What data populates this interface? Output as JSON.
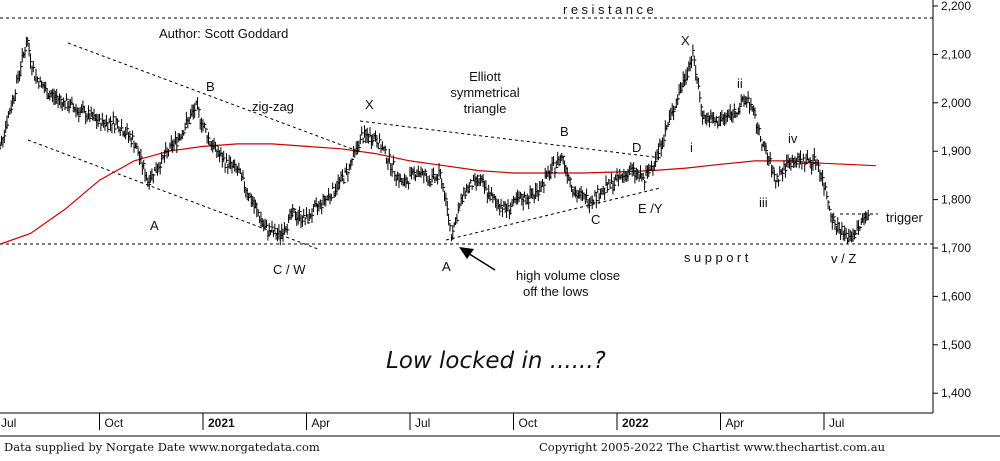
{
  "chart_data": {
    "type": "bar",
    "subtype": "ohlc-price-chart",
    "y_range": [
      1400,
      2200
    ],
    "y_ticks": [
      "1,400",
      "1,500",
      "1,600",
      "1,700",
      "1,800",
      "1,900",
      "2,000",
      "2,100",
      "2,200"
    ],
    "x_labels": [
      "Jul",
      "Oct",
      "2021",
      "Apr",
      "Jul",
      "Oct",
      "2022",
      "Apr",
      "Jul"
    ],
    "x_label_months": [
      0,
      3,
      6,
      9,
      12,
      15,
      18,
      21,
      24
    ],
    "price_path": [
      {
        "m": 0.0,
        "v": 1880
      },
      {
        "m": 0.5,
        "v": 2010
      },
      {
        "m": 0.9,
        "v": 2130
      },
      {
        "m": 1.1,
        "v": 2060
      },
      {
        "m": 1.5,
        "v": 2020
      },
      {
        "m": 2.0,
        "v": 2000
      },
      {
        "m": 2.5,
        "v": 1980
      },
      {
        "m": 3.0,
        "v": 1960
      },
      {
        "m": 3.5,
        "v": 1960
      },
      {
        "m": 4.0,
        "v": 1920
      },
      {
        "m": 4.4,
        "v": 1840
      },
      {
        "m": 4.8,
        "v": 1880
      },
      {
        "m": 5.3,
        "v": 1930
      },
      {
        "m": 5.8,
        "v": 1990
      },
      {
        "m": 6.2,
        "v": 1920
      },
      {
        "m": 6.6,
        "v": 1880
      },
      {
        "m": 7.0,
        "v": 1860
      },
      {
        "m": 7.4,
        "v": 1800
      },
      {
        "m": 7.8,
        "v": 1740
      },
      {
        "m": 8.2,
        "v": 1725
      },
      {
        "m": 8.6,
        "v": 1770
      },
      {
        "m": 9.0,
        "v": 1760
      },
      {
        "m": 9.4,
        "v": 1790
      },
      {
        "m": 9.8,
        "v": 1820
      },
      {
        "m": 10.2,
        "v": 1860
      },
      {
        "m": 10.6,
        "v": 1930
      },
      {
        "m": 11.0,
        "v": 1930
      },
      {
        "m": 11.4,
        "v": 1880
      },
      {
        "m": 11.8,
        "v": 1830
      },
      {
        "m": 12.2,
        "v": 1860
      },
      {
        "m": 12.6,
        "v": 1840
      },
      {
        "m": 12.9,
        "v": 1850
      },
      {
        "m": 13.2,
        "v": 1730
      },
      {
        "m": 13.6,
        "v": 1820
      },
      {
        "m": 14.0,
        "v": 1840
      },
      {
        "m": 14.4,
        "v": 1800
      },
      {
        "m": 14.8,
        "v": 1780
      },
      {
        "m": 15.2,
        "v": 1800
      },
      {
        "m": 15.6,
        "v": 1810
      },
      {
        "m": 16.0,
        "v": 1850
      },
      {
        "m": 16.4,
        "v": 1890
      },
      {
        "m": 16.8,
        "v": 1810
      },
      {
        "m": 17.2,
        "v": 1800
      },
      {
        "m": 17.6,
        "v": 1820
      },
      {
        "m": 18.0,
        "v": 1840
      },
      {
        "m": 18.4,
        "v": 1860
      },
      {
        "m": 18.8,
        "v": 1840
      },
      {
        "m": 19.2,
        "v": 1900
      },
      {
        "m": 19.6,
        "v": 1980
      },
      {
        "m": 20.0,
        "v": 2060
      },
      {
        "m": 20.2,
        "v": 2100
      },
      {
        "m": 20.5,
        "v": 1970
      },
      {
        "m": 20.9,
        "v": 1960
      },
      {
        "m": 21.4,
        "v": 1980
      },
      {
        "m": 21.8,
        "v": 2010
      },
      {
        "m": 22.2,
        "v": 1920
      },
      {
        "m": 22.6,
        "v": 1840
      },
      {
        "m": 23.0,
        "v": 1880
      },
      {
        "m": 23.4,
        "v": 1880
      },
      {
        "m": 23.8,
        "v": 1880
      },
      {
        "m": 24.0,
        "v": 1830
      },
      {
        "m": 24.3,
        "v": 1750
      },
      {
        "m": 24.7,
        "v": 1720
      },
      {
        "m": 25.0,
        "v": 1740
      },
      {
        "m": 25.3,
        "v": 1780
      }
    ],
    "moving_average": [
      {
        "m": 0.0,
        "v": 1705
      },
      {
        "m": 1.0,
        "v": 1730
      },
      {
        "m": 2.0,
        "v": 1780
      },
      {
        "m": 3.0,
        "v": 1840
      },
      {
        "m": 4.0,
        "v": 1880
      },
      {
        "m": 5.0,
        "v": 1900
      },
      {
        "m": 6.0,
        "v": 1910
      },
      {
        "m": 7.0,
        "v": 1915
      },
      {
        "m": 8.0,
        "v": 1915
      },
      {
        "m": 9.0,
        "v": 1910
      },
      {
        "m": 10.0,
        "v": 1905
      },
      {
        "m": 11.0,
        "v": 1895
      },
      {
        "m": 12.0,
        "v": 1880
      },
      {
        "m": 13.0,
        "v": 1870
      },
      {
        "m": 14.0,
        "v": 1860
      },
      {
        "m": 15.0,
        "v": 1855
      },
      {
        "m": 16.0,
        "v": 1855
      },
      {
        "m": 17.0,
        "v": 1855
      },
      {
        "m": 18.0,
        "v": 1857
      },
      {
        "m": 19.0,
        "v": 1860
      },
      {
        "m": 20.0,
        "v": 1865
      },
      {
        "m": 21.0,
        "v": 1873
      },
      {
        "m": 22.0,
        "v": 1880
      },
      {
        "m": 23.0,
        "v": 1880
      },
      {
        "m": 24.0,
        "v": 1875
      },
      {
        "m": 25.5,
        "v": 1870
      }
    ],
    "resistance": 2175,
    "support": 1703,
    "trigger": 1763,
    "colors": {
      "price": "#000000",
      "moving_average": "#cc0000",
      "lines": "#000000"
    }
  },
  "texts": {
    "author": "Author: Scott Goddard",
    "resistance": "resistance",
    "support": "support",
    "trigger": "trigger",
    "zigzag": "zig-zag",
    "elliott1": "Elliott",
    "elliott2": "symmetrical",
    "elliott3": "triangle",
    "hv1": "high volume close",
    "hv2": "off the lows",
    "big": "Low locked in ......?",
    "footer_left": "Data supplied by Norgate Date www.norgatedata.com",
    "footer_right": "Copyright 2005-2022 The Chartist www.thechartist.com.au"
  },
  "wave_labels": [
    {
      "id": "a1",
      "text": "A"
    },
    {
      "id": "b1",
      "text": "B"
    },
    {
      "id": "cw",
      "text": "C / W"
    },
    {
      "id": "x1",
      "text": "X"
    },
    {
      "id": "a2",
      "text": "A"
    },
    {
      "id": "b2",
      "text": "B"
    },
    {
      "id": "c2",
      "text": "C"
    },
    {
      "id": "d2",
      "text": "D"
    },
    {
      "id": "ey",
      "text": "E /Y"
    },
    {
      "id": "x2",
      "text": "X"
    },
    {
      "id": "i",
      "text": "i"
    },
    {
      "id": "ii",
      "text": "ii"
    },
    {
      "id": "iii",
      "text": "iii"
    },
    {
      "id": "iv",
      "text": "iv"
    },
    {
      "id": "vz",
      "text": "v / Z"
    }
  ]
}
